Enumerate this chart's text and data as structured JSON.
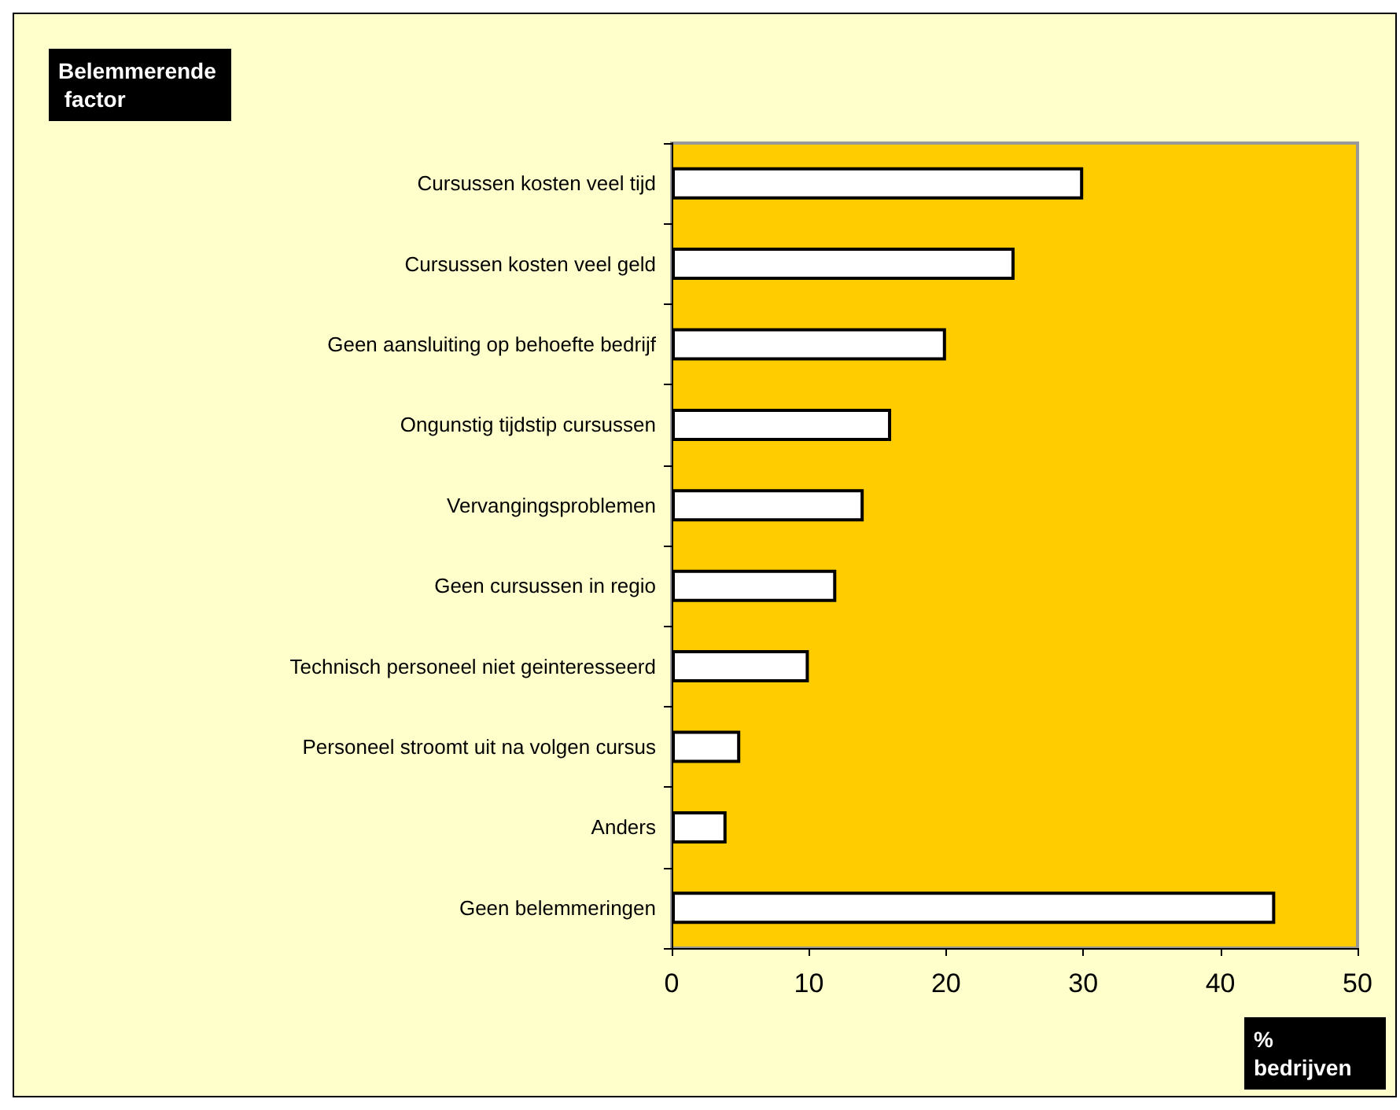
{
  "chart_data": {
    "type": "bar",
    "orientation": "horizontal",
    "ylabel": "Belemmerende factor",
    "xlabel": "% bedrijven",
    "categories": [
      "Cursussen kosten veel tijd",
      "Cursussen kosten veel geld",
      "Geen aansluiting op behoefte bedrijf",
      "Ongunstig tijdstip cursussen",
      "Vervangingsproblemen",
      "Geen cursussen in regio",
      "Technisch personeel niet geinteresseerd",
      "Personeel stroomt uit na volgen cursus",
      "Anders",
      "Geen belemmeringen"
    ],
    "values": [
      30,
      25,
      20,
      16,
      14,
      12,
      10,
      5,
      4,
      44
    ],
    "color": "#ffffff",
    "xlim": [
      0,
      50
    ],
    "xticks": [
      0,
      10,
      20,
      30,
      40,
      50
    ],
    "grid": false
  }
}
